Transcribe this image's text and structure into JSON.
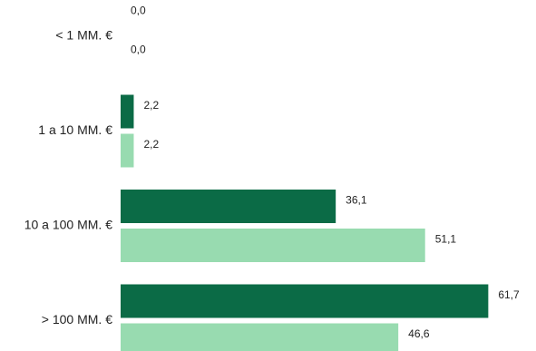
{
  "chart_data": {
    "type": "bar",
    "orientation": "horizontal",
    "categories": [
      "< 1 MM. €",
      "1 a 10 MM. €",
      "10 a 100 MM. €",
      "> 100 MM. €"
    ],
    "series": [
      {
        "color": "#0b6b46",
        "values": [
          0.0,
          2.2,
          36.1,
          61.7
        ],
        "value_labels": [
          "0,0",
          "2,2",
          "36,1",
          "61,7"
        ]
      },
      {
        "color": "#98dbb0",
        "values": [
          0.0,
          2.2,
          51.1,
          46.6
        ],
        "value_labels": [
          "0,0",
          "2,2",
          "51,1",
          "46,6"
        ]
      }
    ],
    "xlim": [
      0,
      65
    ],
    "grid": false,
    "legend": "none"
  }
}
